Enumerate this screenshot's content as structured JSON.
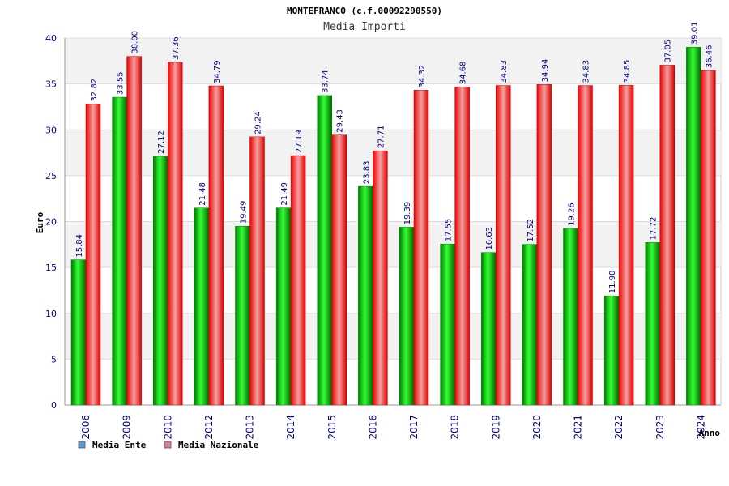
{
  "chart_data": {
    "type": "bar",
    "title": "MONTEFRANCO (c.f.00092290550)",
    "subtitle": "Media Importi",
    "xlabel": "Anno",
    "ylabel": "Euro",
    "ylim": [
      0,
      40
    ],
    "yticks": [
      "0",
      "5",
      "10",
      "15",
      "20",
      "25",
      "30",
      "35",
      "40"
    ],
    "grid": true,
    "legend_position": "bottom-left",
    "categories": [
      "2006",
      "2009",
      "2010",
      "2012",
      "2013",
      "2014",
      "2015",
      "2016",
      "2017",
      "2018",
      "2019",
      "2020",
      "2021",
      "2022",
      "2023",
      "2024"
    ],
    "series": [
      {
        "name": "Media Ente",
        "color": "#00cc00",
        "legend_color": "#5b9bd5",
        "values": [
          15.84,
          33.55,
          27.12,
          21.48,
          19.49,
          21.49,
          33.74,
          23.83,
          19.39,
          17.55,
          16.63,
          17.52,
          19.26,
          11.9,
          17.72,
          39.01
        ],
        "labels": [
          "15.84",
          "33.55",
          "27.12",
          "21.48",
          "19.49",
          "21.49",
          "33.74",
          "23.83",
          "19.39",
          "17.55",
          "16.63",
          "17.52",
          "19.26",
          "11.90",
          "17.72",
          "39.01"
        ]
      },
      {
        "name": "Media Nazionale",
        "color": "#ff1a1a",
        "legend_color": "#e377a8",
        "values": [
          32.82,
          38.0,
          37.36,
          34.79,
          29.24,
          27.19,
          29.43,
          27.71,
          34.32,
          34.68,
          34.83,
          34.94,
          34.83,
          34.85,
          37.05,
          36.46
        ],
        "labels": [
          "32.82",
          "38.00",
          "37.36",
          "34.79",
          "29.24",
          "27.19",
          "29.43",
          "27.71",
          "34.32",
          "34.68",
          "34.83",
          "34.94",
          "34.83",
          "34.85",
          "37.05",
          "36.46"
        ]
      }
    ]
  }
}
